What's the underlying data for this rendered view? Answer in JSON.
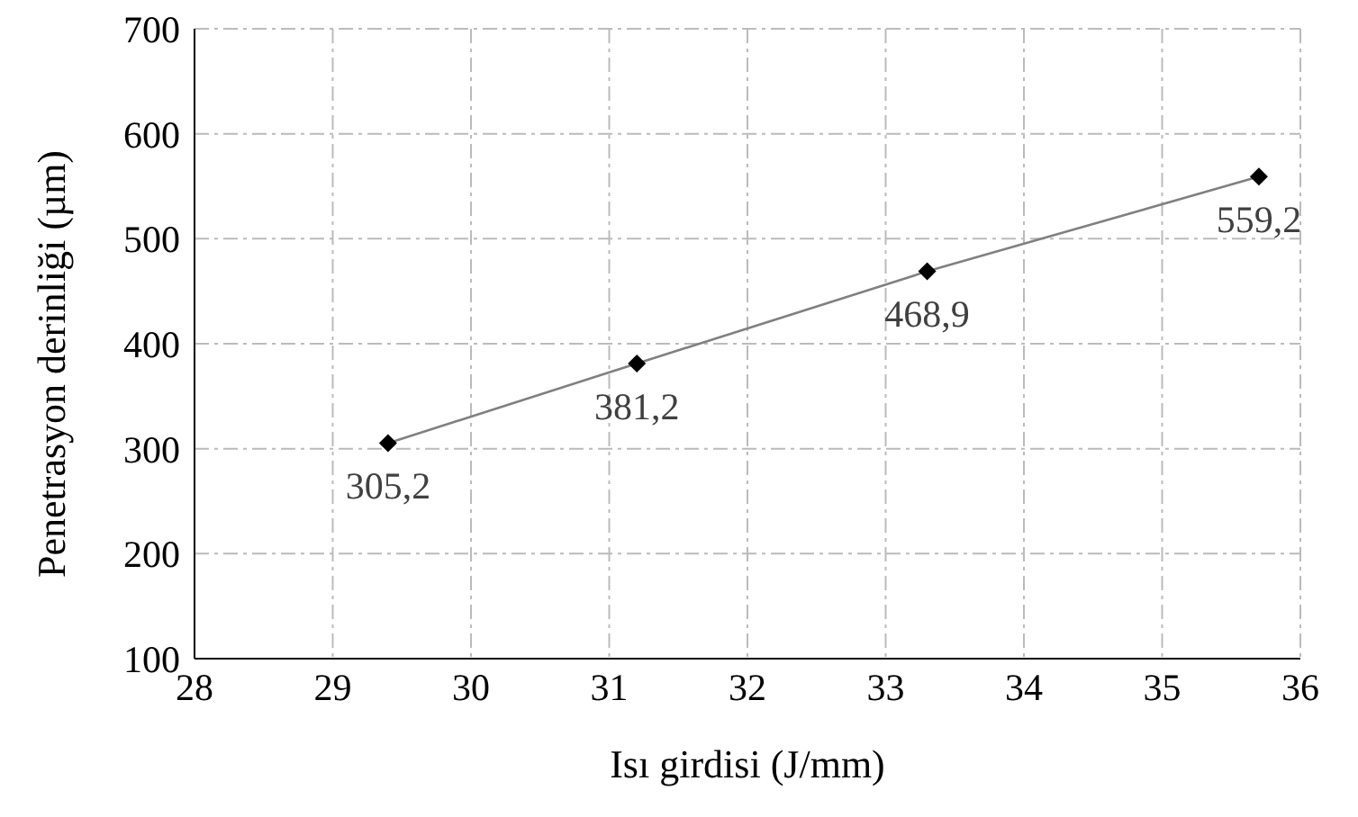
{
  "chart_data": {
    "type": "line",
    "xlabel": "Isı girdisi (J/mm)",
    "ylabel": "Penetrasyon derinliği (µm)",
    "x": [
      29.4,
      31.2,
      33.3,
      35.7
    ],
    "series": [
      {
        "color": "#000000",
        "values": [
          305.2,
          381.2,
          468.9,
          559.2
        ],
        "value_labels": [
          "305,2",
          "381,2",
          "468,9",
          "559,2"
        ]
      }
    ],
    "xlim": [
      28,
      36
    ],
    "xticks": [
      28,
      29,
      30,
      31,
      32,
      33,
      34,
      35,
      36
    ],
    "ylim": [
      100,
      700
    ],
    "yticks": [
      100,
      200,
      300,
      400,
      500,
      600,
      700
    ],
    "grid": true,
    "marker": "diamond",
    "line_style": "solid"
  }
}
